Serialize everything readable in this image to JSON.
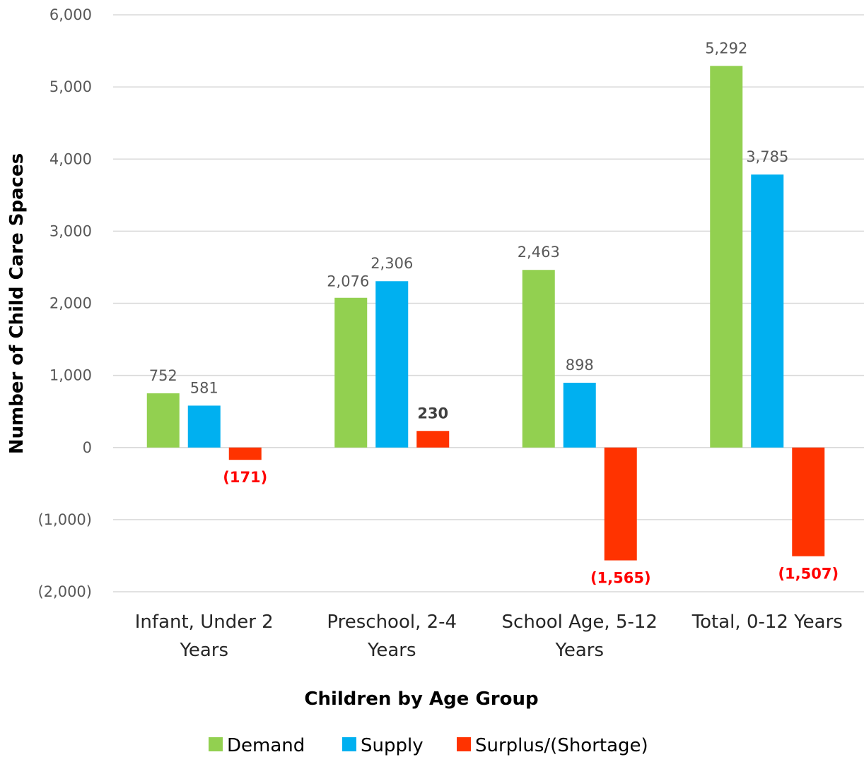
{
  "chart_data": {
    "type": "bar",
    "title": "",
    "xlabel": "Children by Age Group",
    "ylabel": "Number of Child Care Spaces",
    "ylim": [
      -2000,
      6000
    ],
    "ytick_values": [
      -2000,
      -1000,
      0,
      1000,
      2000,
      3000,
      4000,
      5000,
      6000
    ],
    "ytick_labels": [
      "(2,000)",
      "(1,000)",
      "0",
      "1,000",
      "2,000",
      "3,000",
      "4,000",
      "5,000",
      "6,000"
    ],
    "grid": true,
    "legend": "bottom",
    "categories": [
      [
        "Infant, Under 2",
        "Years"
      ],
      [
        "Preschool, 2-4",
        "Years"
      ],
      [
        "School Age, 5-12",
        "Years"
      ],
      [
        "Total, 0-12 Years"
      ]
    ],
    "series": [
      {
        "name": "Demand",
        "color": "#92d050",
        "values": [
          752,
          2076,
          2463,
          5292
        ],
        "labels": [
          "752",
          "2,076",
          "2,463",
          "5,292"
        ]
      },
      {
        "name": "Supply",
        "color": "#00b0f0",
        "values": [
          581,
          2306,
          898,
          3785
        ],
        "labels": [
          "581",
          "2,306",
          "898",
          "3,785"
        ]
      },
      {
        "name": "Surplus/(Shortage)",
        "color": "#ff3300",
        "values": [
          -171,
          230,
          -1565,
          -1507
        ],
        "labels": [
          "(171)",
          "230",
          "(1,565)",
          "(1,507)"
        ]
      }
    ]
  }
}
